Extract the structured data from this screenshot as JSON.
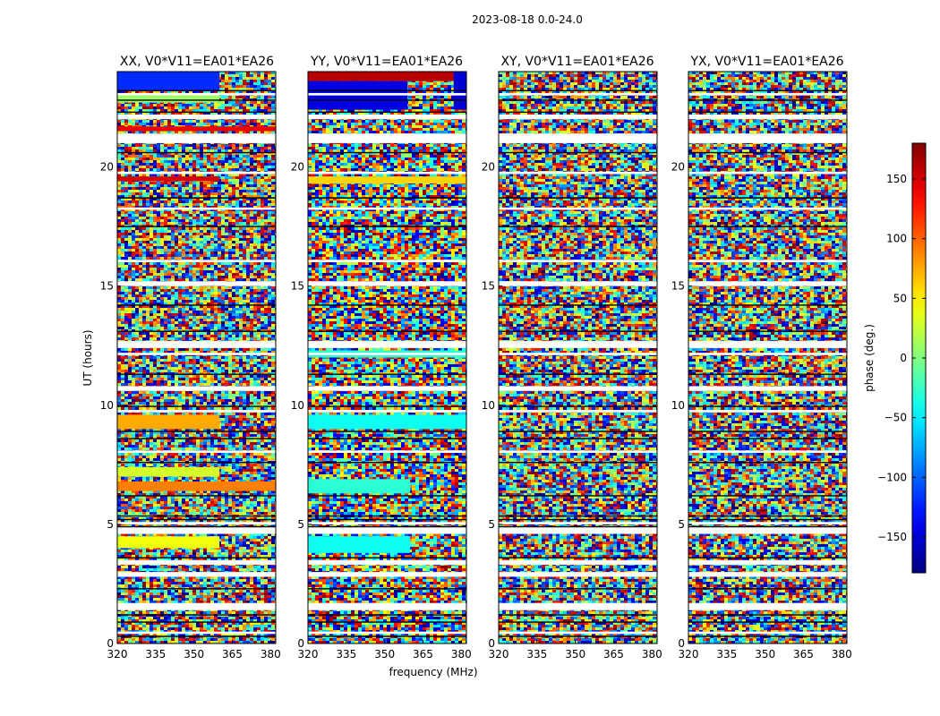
{
  "suptitle": "2023-08-18 0.0-24.0",
  "colors": {
    "background": "#ffffff",
    "frame": "#000000",
    "blank_row": "#ffffff",
    "colormap": "jet"
  },
  "chart_data": {
    "type": "heatmap",
    "colormap": "jet",
    "xlabel": "frequency (MHz)",
    "ylabel": "UT (hours)",
    "x_ticks": [
      320,
      335,
      350,
      365,
      380
    ],
    "y_ticks": [
      0,
      5,
      10,
      15,
      20
    ],
    "xlim": [
      320,
      382
    ],
    "ylim": [
      0,
      24
    ],
    "panels": [
      {
        "title": "XX, V0*V11=EA01*EA26",
        "coherent_bands": [
          {
            "t0": 23.2,
            "t1": 24.0,
            "f0": 320,
            "f1": 360,
            "phase": -120
          },
          {
            "t0": 22.7,
            "t1": 23.0,
            "f0": 320,
            "f1": 360,
            "phase": 10
          },
          {
            "t0": 21.5,
            "t1": 21.7,
            "f0": 320,
            "f1": 382,
            "phase": 140
          },
          {
            "t0": 19.4,
            "t1": 19.6,
            "f0": 320,
            "f1": 360,
            "phase": 150
          },
          {
            "t0": 9.0,
            "t1": 9.6,
            "f0": 320,
            "f1": 360,
            "phase": 75
          },
          {
            "t0": 7.0,
            "t1": 7.4,
            "f0": 320,
            "f1": 360,
            "phase": 30
          },
          {
            "t0": 6.4,
            "t1": 6.8,
            "f0": 320,
            "f1": 382,
            "phase": 90
          },
          {
            "t0": 4.0,
            "t1": 4.5,
            "f0": 320,
            "f1": 360,
            "phase": 40
          }
        ]
      },
      {
        "title": "YY, V0*V11=EA01*EA26",
        "coherent_bands": [
          {
            "t0": 23.6,
            "t1": 24.0,
            "f0": 320,
            "f1": 382,
            "phase": 160
          },
          {
            "t0": 22.4,
            "t1": 23.6,
            "f0": 320,
            "f1": 359,
            "phase": -145
          },
          {
            "t0": 22.4,
            "t1": 24.0,
            "f0": 377,
            "f1": 382,
            "phase": -150
          },
          {
            "t0": 19.3,
            "t1": 19.6,
            "f0": 320,
            "f1": 382,
            "phase": 60
          },
          {
            "t0": 12.0,
            "t1": 12.3,
            "f0": 320,
            "f1": 382,
            "phase": -30
          },
          {
            "t0": 9.0,
            "t1": 9.6,
            "f0": 320,
            "f1": 382,
            "phase": -40
          },
          {
            "t0": 6.3,
            "t1": 6.9,
            "f0": 320,
            "f1": 360,
            "phase": -30
          },
          {
            "t0": 3.8,
            "t1": 4.5,
            "f0": 320,
            "f1": 360,
            "phase": -40
          }
        ]
      },
      {
        "title": "XY, V0*V11=EA01*EA26",
        "coherent_bands": []
      },
      {
        "title": "YX, V0*V11=EA01*EA26",
        "coherent_bands": []
      }
    ],
    "blank_rows": [
      [
        21.0,
        21.4
      ],
      [
        22.0,
        22.2
      ],
      [
        19.7,
        19.8
      ],
      [
        18.2,
        18.3
      ],
      [
        16.0,
        16.1
      ],
      [
        15.0,
        15.2
      ],
      [
        12.4,
        12.7
      ],
      [
        12.1,
        12.2
      ],
      [
        10.6,
        10.8
      ],
      [
        9.7,
        9.8
      ],
      [
        8.0,
        8.1
      ],
      [
        5.0,
        5.1
      ],
      [
        4.6,
        4.9
      ],
      [
        3.3,
        3.5
      ],
      [
        2.8,
        3.0
      ],
      [
        1.4,
        1.7
      ],
      [
        0.4,
        0.5
      ],
      [
        23.0,
        23.1
      ]
    ],
    "black_lines": [
      23.2,
      22.8,
      22.3,
      20.6,
      18.7,
      17.5,
      14.2,
      13.1,
      11.3,
      9.95,
      8.9,
      8.6,
      7.6,
      6.2,
      5.35,
      5.2,
      4.9,
      3.6,
      2.3,
      1.2,
      0.9,
      0.3
    ],
    "colorbar": {
      "label": "phase (deg.)",
      "ticks": [
        -150,
        -100,
        -50,
        0,
        50,
        100,
        150
      ],
      "vmin": -180,
      "vmax": 180
    }
  }
}
